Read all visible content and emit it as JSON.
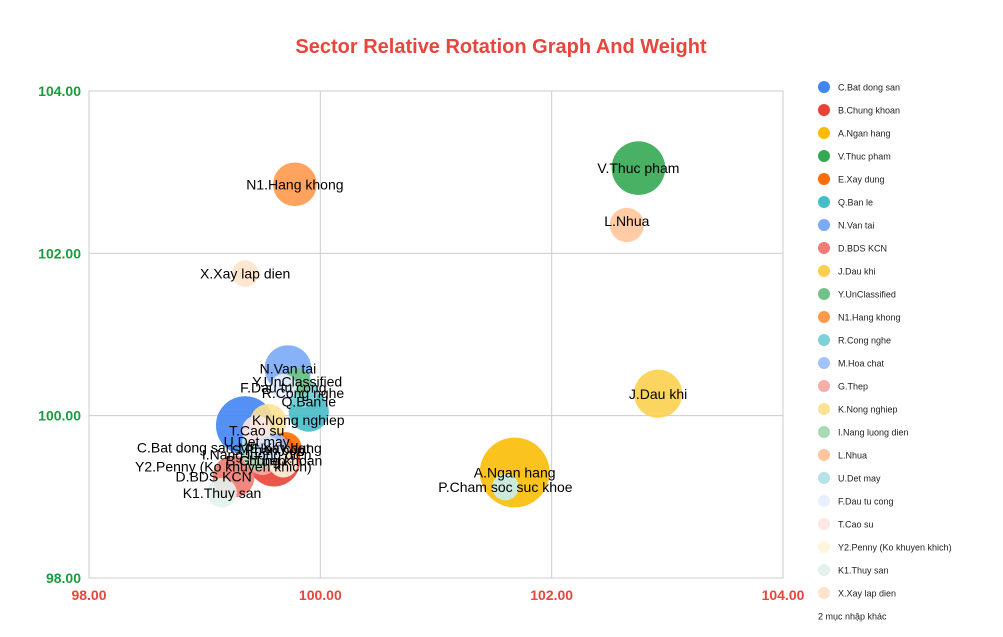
{
  "chart_data": {
    "type": "scatter",
    "subtype": "bubble",
    "title": "Sector Relative Rotation Graph And Weight",
    "xlabel": "",
    "ylabel": "",
    "xlim": [
      98,
      104
    ],
    "ylim": [
      98,
      104
    ],
    "x_ticks": [
      "98.00",
      "100.00",
      "102.00",
      "104.00"
    ],
    "y_ticks": [
      "98.00",
      "100.00",
      "102.00",
      "104.00"
    ],
    "grid": true,
    "legend_position": "right",
    "other_label": "2 mục nhập khác",
    "series": [
      {
        "name": "C.Bat dong san",
        "color": "#4285f4",
        "x": 99.35,
        "y": 99.88,
        "size": 2.2,
        "label_dx": -60,
        "label_dy": 22
      },
      {
        "name": "B.Chung khoan",
        "color": "#ea4335",
        "x": 99.6,
        "y": 99.45,
        "size": 1.7,
        "label_dx": 0,
        "label_dy": 0
      },
      {
        "name": "A.Ngan hang",
        "color": "#fbbc04",
        "x": 101.68,
        "y": 99.3,
        "size": 3.3,
        "label_dx": 0,
        "label_dy": 0
      },
      {
        "name": "V.Thuc pham",
        "color": "#34a853",
        "x": 102.75,
        "y": 103.05,
        "size": 1.8,
        "label_dx": 0,
        "label_dy": 0
      },
      {
        "name": "E.Xay dung",
        "color": "#ff6d01",
        "x": 99.7,
        "y": 99.6,
        "size": 0.5,
        "label_dx": 0,
        "label_dy": 0
      },
      {
        "name": "Q.Ban le",
        "color": "#46bdc6",
        "x": 99.9,
        "y": 100.05,
        "size": 0.9,
        "label_dx": 0,
        "label_dy": -10
      },
      {
        "name": "N.Van tai",
        "color": "#7baaf7",
        "x": 99.72,
        "y": 100.58,
        "size": 1.3,
        "label_dx": 0,
        "label_dy": 0
      },
      {
        "name": "D.BDS KCN",
        "color": "#f07b72",
        "x": 99.25,
        "y": 99.25,
        "size": 1.0,
        "label_dx": -20,
        "label_dy": 0
      },
      {
        "name": "J.Dau khi",
        "color": "#fcd04f",
        "x": 102.92,
        "y": 100.27,
        "size": 1.4,
        "label_dx": 0,
        "label_dy": 0
      },
      {
        "name": "Y.UnClassified",
        "color": "#71c287",
        "x": 99.8,
        "y": 100.42,
        "size": 0.3,
        "label_dx": 0,
        "label_dy": 0
      },
      {
        "name": "N1.Hang khong",
        "color": "#ff994d",
        "x": 99.78,
        "y": 102.85,
        "size": 1.1,
        "label_dx": 0,
        "label_dy": 0
      },
      {
        "name": "R.Cong nghe",
        "color": "#7ed1d7",
        "x": 99.85,
        "y": 100.28,
        "size": 0.4,
        "label_dx": 0,
        "label_dy": 0
      },
      {
        "name": "M.Hoa chat",
        "color": "#a0c3ff",
        "x": 99.6,
        "y": 99.6,
        "size": 0.4,
        "label_dx": 0,
        "label_dy": 0
      },
      {
        "name": "G.Thep",
        "color": "#f6aea9",
        "x": 99.5,
        "y": 99.45,
        "size": 0.4,
        "label_dx": 0,
        "label_dy": 0
      },
      {
        "name": "K.Nong nghiep",
        "color": "#fde293",
        "x": 99.55,
        "y": 99.92,
        "size": 0.7,
        "label_dx": 30,
        "label_dy": -2
      },
      {
        "name": "I.Nang luong dien",
        "color": "#a8dab5",
        "x": 99.45,
        "y": 99.52,
        "size": 0.4,
        "label_dx": 0,
        "label_dy": 0
      },
      {
        "name": "L.Nhua",
        "color": "#ffc69c",
        "x": 102.65,
        "y": 102.35,
        "size": 0.6,
        "label_dx": 0,
        "label_dy": -4
      },
      {
        "name": "U.Det may",
        "color": "#b5e3e7",
        "x": 99.45,
        "y": 99.68,
        "size": 0.4,
        "label_dx": 0,
        "label_dy": 0
      },
      {
        "name": "F.Dau tu cong",
        "color": "#e8efff",
        "x": 99.68,
        "y": 100.35,
        "size": 0.3,
        "label_dx": 0,
        "label_dy": 0
      },
      {
        "name": "T.Cao su",
        "color": "#fde6e4",
        "x": 99.45,
        "y": 99.82,
        "size": 0.4,
        "label_dx": 0,
        "label_dy": 0
      },
      {
        "name": "Y2.Penny (Ko khuyen khich)",
        "color": "#fff5de",
        "x": 99.68,
        "y": 99.42,
        "size": 0.4,
        "label_dx": -60,
        "label_dy": 4
      },
      {
        "name": "K1.Thuy san",
        "color": "#e3f3ec",
        "x": 99.15,
        "y": 99.05,
        "size": 0.4,
        "label_dx": 0,
        "label_dy": 0
      },
      {
        "name": "X.Xay lap dien",
        "color": "#ffe3cc",
        "x": 99.35,
        "y": 101.75,
        "size": 0.3,
        "label_dx": 0,
        "label_dy": 0
      },
      {
        "name": "P.Cham soc suc khoe",
        "color": "#c5eef1",
        "x": 101.6,
        "y": 99.12,
        "size": 0.3,
        "label_dx": 0,
        "label_dy": 0
      },
      {
        "name": "S.Phan bon",
        "color": "#d2e3fc",
        "x": 99.55,
        "y": 99.58,
        "size": 0.3,
        "label_dx": 0,
        "label_dy": 0
      }
    ]
  }
}
